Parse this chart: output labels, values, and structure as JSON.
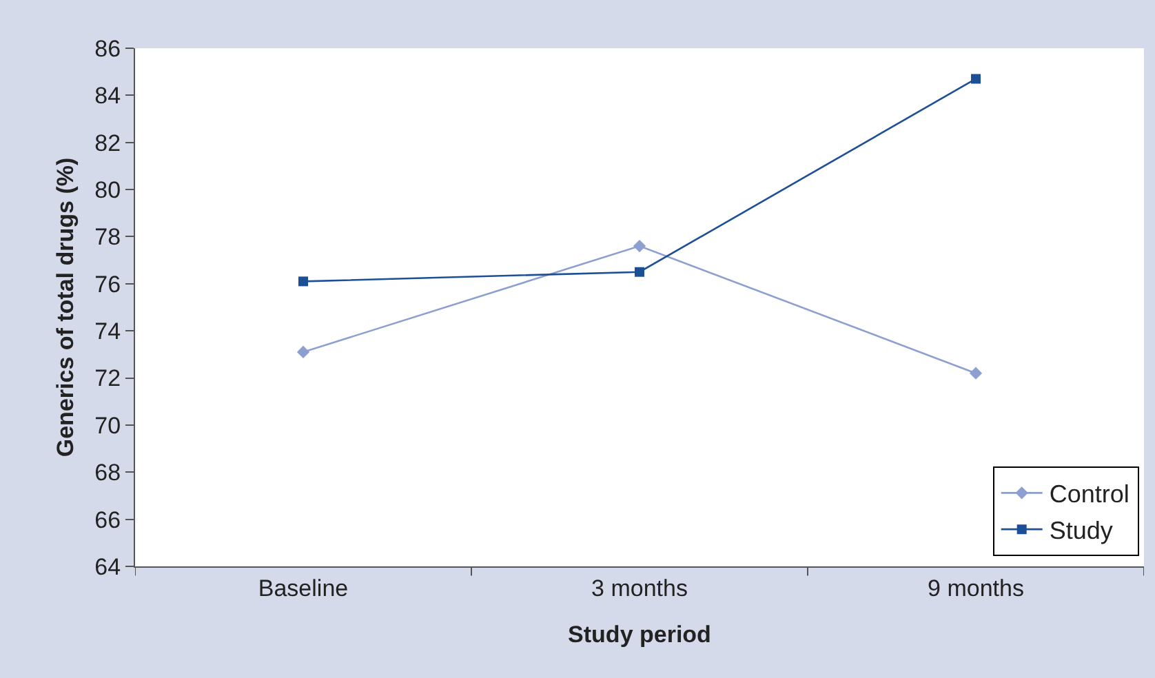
{
  "chart_data": {
    "type": "line",
    "xlabel": "Study period",
    "ylabel": "Generics of total drugs (%)",
    "categories": [
      "Baseline",
      "3 months",
      "9 months"
    ],
    "series": [
      {
        "name": "Control",
        "color": "#8d9fd1",
        "marker": "diamond",
        "values": [
          73.1,
          77.6,
          72.2
        ]
      },
      {
        "name": "Study",
        "color": "#1d4f97",
        "marker": "square",
        "values": [
          76.1,
          76.5,
          84.7
        ]
      }
    ],
    "ylim": [
      64,
      86
    ],
    "yticks": [
      64,
      66,
      68,
      70,
      72,
      74,
      76,
      78,
      80,
      82,
      84,
      86
    ],
    "grid": false,
    "legend": "bottom right",
    "line_style": "solid"
  }
}
